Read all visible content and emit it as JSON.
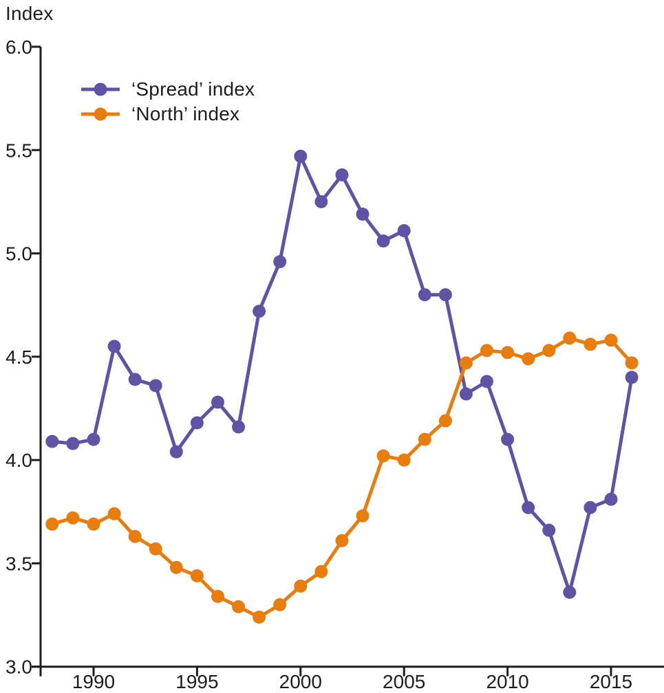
{
  "chart_data": {
    "type": "line",
    "title": "Index",
    "x": [
      1988,
      1989,
      1990,
      1991,
      1992,
      1993,
      1994,
      1995,
      1996,
      1997,
      1998,
      1999,
      2000,
      2001,
      2002,
      2003,
      2004,
      2005,
      2006,
      2007,
      2008,
      2009,
      2010,
      2011,
      2012,
      2013,
      2014,
      2015,
      2016
    ],
    "series": [
      {
        "name": "‘Spread’ index",
        "color": "#5f53a6",
        "values": [
          4.09,
          4.08,
          4.1,
          4.55,
          4.39,
          4.36,
          4.04,
          4.18,
          4.28,
          4.16,
          4.72,
          4.96,
          5.47,
          5.25,
          5.38,
          5.19,
          5.06,
          5.11,
          4.8,
          4.8,
          4.32,
          4.38,
          4.1,
          3.77,
          3.66,
          3.36,
          3.77,
          3.81,
          4.4
        ]
      },
      {
        "name": "‘North’ index",
        "color": "#e87c0c",
        "values": [
          3.69,
          3.72,
          3.69,
          3.74,
          3.63,
          3.57,
          3.48,
          3.44,
          3.34,
          3.29,
          3.24,
          3.3,
          3.39,
          3.46,
          3.61,
          3.73,
          4.02,
          4.0,
          4.1,
          4.19,
          4.47,
          4.53,
          4.52,
          4.49,
          4.53,
          4.59,
          4.56,
          4.58,
          4.47
        ]
      }
    ],
    "ylim": [
      3.0,
      6.0
    ],
    "yticks": [
      6.0,
      5.5,
      5.0,
      4.5,
      4.0,
      3.5,
      3.0
    ],
    "ytick_labels": [
      "6.0",
      "5.5",
      "5.0",
      "4.5",
      "4.0",
      "3.5",
      "3.0"
    ],
    "xticks": [
      1990,
      1995,
      2000,
      2005,
      2010,
      2015
    ],
    "xtick_labels": [
      "1990",
      "1995",
      "2000",
      "2005",
      "2010",
      "2015"
    ],
    "grid": false,
    "legend_position": "top-left",
    "axis_color": "#1d1d1b"
  }
}
